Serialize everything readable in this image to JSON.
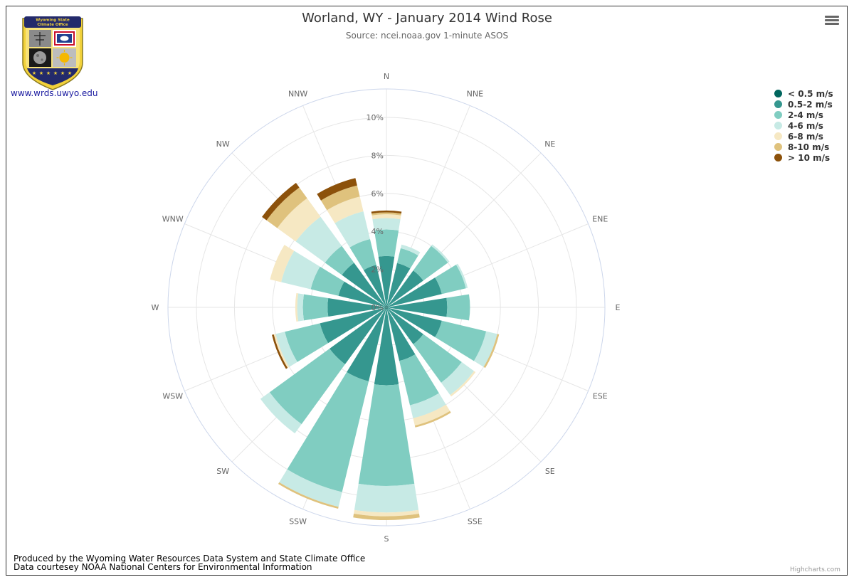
{
  "header": {
    "title": "Worland, WY - January 2014 Wind Rose",
    "subtitle": "Source: ncei.noaa.gov 1-minute ASOS"
  },
  "logo": {
    "banner_line1": "Wyoming State",
    "banner_line2": "Climate Office",
    "link_text": "www.wrds.uwyo.edu"
  },
  "footer": {
    "credit_line1": "Produced by the Wyoming Water Resources Data System and State Climate Office",
    "credit_line2": "Data courtesey NOAA National Centers for Environmental Information",
    "highcharts": "Highcharts.com"
  },
  "chart_data": {
    "type": "windrose",
    "stacked": true,
    "grid": true,
    "legend_position": "right",
    "radial_axis": {
      "min": 0,
      "max": 11.5,
      "ticks": [
        0,
        2,
        4,
        6,
        8,
        10
      ],
      "tick_labels": [
        "0%",
        "2%",
        "4%",
        "6%",
        "8%",
        "10%"
      ]
    },
    "categories": [
      "N",
      "NNE",
      "NE",
      "ENE",
      "E",
      "ESE",
      "SE",
      "SSE",
      "S",
      "SSW",
      "SW",
      "WSW",
      "W",
      "WNW",
      "NW",
      "NNW"
    ],
    "series": [
      {
        "name": "< 0.5 m/s",
        "color": "#01665e",
        "values": [
          0.1,
          0.1,
          0.1,
          0.1,
          0.1,
          0.1,
          0.1,
          0.1,
          0.1,
          0.1,
          0.1,
          0.1,
          0.1,
          0.1,
          0.1,
          0.1
        ]
      },
      {
        "name": "0.5-2 m/s",
        "color": "#35978f",
        "values": [
          2.6,
          2.3,
          2.3,
          2.9,
          3.1,
          2.9,
          2.3,
          2.8,
          4.0,
          3.9,
          3.6,
          3.5,
          3.0,
          2.5,
          2.8,
          2.2
        ]
      },
      {
        "name": "2-4 m/s",
        "color": "#80cdc1",
        "values": [
          1.4,
          0.8,
          1.6,
          1.3,
          1.2,
          2.4,
          2.5,
          2.4,
          5.3,
          6.0,
          3.9,
          1.9,
          1.3,
          1.5,
          1.1,
          1.4
        ]
      },
      {
        "name": "4-6 m/s",
        "color": "#c7eae5",
        "values": [
          0.6,
          0.2,
          0.1,
          0.1,
          0.0,
          0.6,
          0.8,
          0.7,
          1.4,
          0.8,
          0.6,
          0.5,
          0.3,
          1.6,
          1.9,
          1.5
        ]
      },
      {
        "name": "6-8 m/s",
        "color": "#f6e8c3",
        "values": [
          0.2,
          0.0,
          0.0,
          0.0,
          0.0,
          0.0,
          0.1,
          0.4,
          0.2,
          0.0,
          0.0,
          0.1,
          0.1,
          0.6,
          1.2,
          0.8
        ]
      },
      {
        "name": "8-10 m/s",
        "color": "#dfc27d",
        "values": [
          0.1,
          0.0,
          0.0,
          0.0,
          0.0,
          0.1,
          0.0,
          0.1,
          0.2,
          0.1,
          0.0,
          0.0,
          0.0,
          0.0,
          0.7,
          0.6
        ]
      },
      {
        "name": "> 10 m/s",
        "color": "#8c510a",
        "values": [
          0.1,
          0.0,
          0.0,
          0.0,
          0.0,
          0.0,
          0.0,
          0.0,
          0.0,
          0.0,
          0.0,
          0.1,
          0.0,
          0.0,
          0.3,
          0.4
        ]
      }
    ]
  }
}
